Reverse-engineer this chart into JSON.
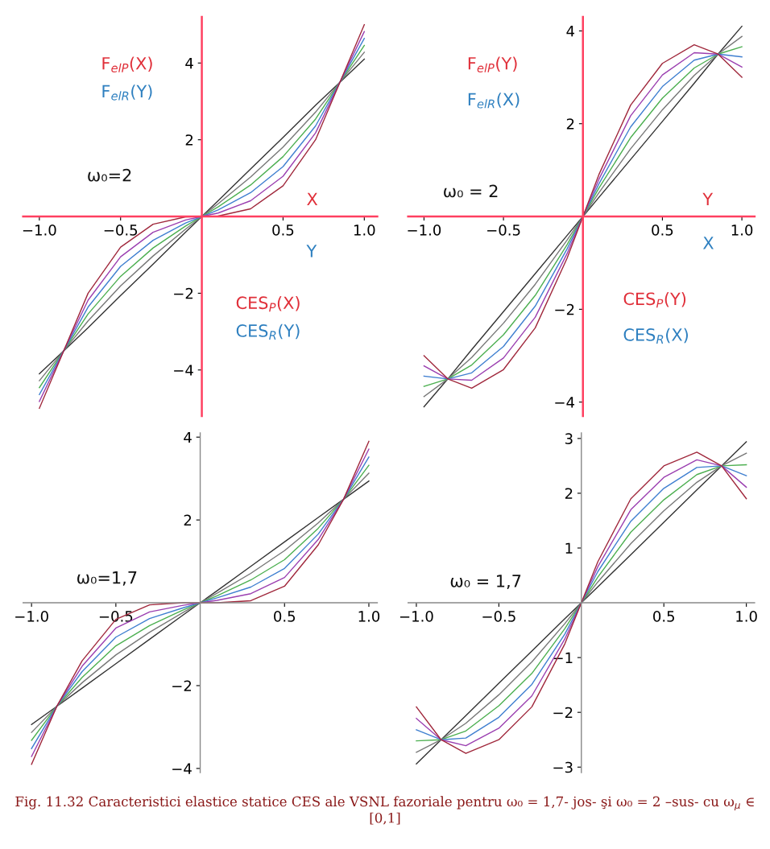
{
  "chart_data": [
    {
      "type": "line",
      "x": [
        -1,
        -0.85,
        -0.7,
        -0.5,
        -0.3,
        -0.1,
        0,
        0.1,
        0.3,
        0.5,
        0.7,
        0.85,
        1
      ],
      "series": [
        {
          "color": "#333333",
          "values": [
            -4.1,
            -3.5,
            -2.9,
            -2.06,
            -1.24,
            -0.41,
            0,
            0.41,
            1.24,
            2.06,
            2.9,
            3.5,
            4.1
          ]
        },
        {
          "color": "#777777",
          "values": [
            -4.28,
            -3.5,
            -2.72,
            -1.81,
            -1.03,
            -0.33,
            0,
            0.33,
            1.03,
            1.81,
            2.72,
            3.5,
            4.28
          ]
        },
        {
          "color": "#4caf50",
          "values": [
            -4.46,
            -3.5,
            -2.54,
            -1.56,
            -0.82,
            -0.25,
            0,
            0.25,
            0.82,
            1.56,
            2.54,
            3.5,
            4.46
          ]
        },
        {
          "color": "#3f7fd0",
          "values": [
            -4.64,
            -3.5,
            -2.36,
            -1.3,
            -0.62,
            -0.17,
            0,
            0.17,
            0.62,
            1.3,
            2.36,
            3.5,
            4.64
          ]
        },
        {
          "color": "#9b3fb0",
          "values": [
            -4.82,
            -3.5,
            -2.18,
            -1.05,
            -0.41,
            -0.09,
            0,
            0.09,
            0.41,
            1.05,
            2.18,
            3.5,
            4.82
          ]
        },
        {
          "color": "#a0283c",
          "values": [
            -5.0,
            -3.5,
            -2.0,
            -0.8,
            -0.2,
            -0.01,
            0,
            0.01,
            0.2,
            0.8,
            2.0,
            3.5,
            5.0
          ]
        }
      ],
      "xlim": [
        -1.1,
        1.08
      ],
      "ylim": [
        -5.2,
        5.2
      ],
      "xticks": [
        {
          "value": -1,
          "label": "−1.0"
        },
        {
          "value": -0.5,
          "label": "−0.5"
        },
        {
          "value": 0.5,
          "label": "0.5"
        },
        {
          "value": 1,
          "label": "1.0"
        }
      ],
      "yticks": [
        {
          "value": -4,
          "label": "−4"
        },
        {
          "value": -2,
          "label": "−2"
        },
        2,
        4
      ],
      "annotations": [
        "F$_{elP}$(X)",
        "F$_{elR}$(Y)",
        "ω₀=2",
        "X",
        "Y",
        "CES$_{P}$(X)",
        "CES$_{R}$(Y)"
      ]
    },
    {
      "type": "line",
      "x": [
        -1,
        -0.85,
        -0.7,
        -0.5,
        -0.3,
        -0.1,
        0,
        0.1,
        0.3,
        0.5,
        0.7,
        0.85,
        1
      ],
      "series": [
        {
          "color": "#333333",
          "values": [
            -4.1,
            -3.5,
            -2.87,
            -2.05,
            -1.23,
            -0.41,
            0,
            0.41,
            1.23,
            2.05,
            2.87,
            3.5,
            4.1
          ]
        },
        {
          "color": "#777777",
          "values": [
            -3.88,
            -3.5,
            -3.04,
            -2.3,
            -1.46,
            -0.51,
            0,
            0.51,
            1.46,
            2.3,
            3.04,
            3.5,
            3.88
          ]
        },
        {
          "color": "#4caf50",
          "values": [
            -3.66,
            -3.5,
            -3.2,
            -2.55,
            -1.7,
            -0.61,
            0,
            0.61,
            1.7,
            2.55,
            3.2,
            3.5,
            3.66
          ]
        },
        {
          "color": "#3f7fd0",
          "values": [
            -3.44,
            -3.5,
            -3.37,
            -2.8,
            -1.93,
            -0.7,
            0,
            0.7,
            1.93,
            2.8,
            3.37,
            3.5,
            3.44
          ]
        },
        {
          "color": "#9b3fb0",
          "values": [
            -3.22,
            -3.5,
            -3.53,
            -3.05,
            -2.17,
            -0.8,
            0,
            0.8,
            2.17,
            3.05,
            3.53,
            3.5,
            3.22
          ]
        },
        {
          "color": "#a0283c",
          "values": [
            -3.0,
            -3.5,
            -3.7,
            -3.3,
            -2.4,
            -0.9,
            0,
            0.9,
            2.4,
            3.3,
            3.7,
            3.5,
            3.0
          ]
        }
      ],
      "xlim": [
        -1.1,
        1.08
      ],
      "ylim": [
        -4.3,
        4.3
      ],
      "xticks": [
        {
          "value": -1,
          "label": "−1.0"
        },
        {
          "value": -0.5,
          "label": "−0.5"
        },
        {
          "value": 0.5,
          "label": "0.5"
        },
        {
          "value": 1,
          "label": "1.0"
        }
      ],
      "yticks": [
        {
          "value": -4,
          "label": "−4"
        },
        {
          "value": -2,
          "label": "−2"
        },
        2,
        4
      ],
      "annotations": [
        "F$_{elP}$(Y)",
        "F$_{elR}$(X)",
        "ω₀ = 2",
        "Y",
        "X",
        "CES$_{P}$(Y)",
        "CES$_{R}$(X)"
      ]
    },
    {
      "type": "line",
      "x": [
        -1,
        -0.85,
        -0.7,
        -0.5,
        -0.3,
        -0.1,
        0,
        0.1,
        0.3,
        0.5,
        0.7,
        0.85,
        1
      ],
      "series": [
        {
          "color": "#333333",
          "values": [
            -2.94,
            -2.5,
            -2.06,
            -1.47,
            -0.88,
            -0.29,
            0,
            0.29,
            0.88,
            1.47,
            2.06,
            2.5,
            2.94
          ]
        },
        {
          "color": "#777777",
          "values": [
            -3.13,
            -2.5,
            -1.93,
            -1.26,
            -0.71,
            -0.23,
            0,
            0.23,
            0.71,
            1.26,
            1.93,
            2.5,
            3.13
          ]
        },
        {
          "color": "#4caf50",
          "values": [
            -3.32,
            -2.5,
            -1.8,
            -1.04,
            -0.55,
            -0.17,
            0,
            0.17,
            0.55,
            1.04,
            1.8,
            2.5,
            3.32
          ]
        },
        {
          "color": "#3f7fd0",
          "values": [
            -3.52,
            -2.5,
            -1.66,
            -0.83,
            -0.38,
            -0.12,
            0,
            0.12,
            0.38,
            0.83,
            1.66,
            2.5,
            3.52
          ]
        },
        {
          "color": "#9b3fb0",
          "values": [
            -3.71,
            -2.5,
            -1.53,
            -0.61,
            -0.22,
            -0.06,
            0,
            0.06,
            0.22,
            0.61,
            1.53,
            2.5,
            3.71
          ]
        },
        {
          "color": "#a0283c",
          "values": [
            -3.9,
            -2.5,
            -1.4,
            -0.4,
            -0.05,
            0.0,
            0,
            0.0,
            0.05,
            0.4,
            1.4,
            2.5,
            3.9
          ]
        }
      ],
      "xlim": [
        -1.05,
        1.05
      ],
      "ylim": [
        -4.1,
        4.1
      ],
      "xticks": [
        {
          "value": -1,
          "label": "−1.0"
        },
        {
          "value": -0.5,
          "label": "−0.5"
        },
        {
          "value": 0.5,
          "label": "0.5"
        },
        {
          "value": 1,
          "label": "1.0"
        }
      ],
      "yticks": [
        {
          "value": -4,
          "label": "−4"
        },
        {
          "value": -2,
          "label": "−2"
        },
        2,
        4
      ],
      "annotations": [
        "ω₀=1,7"
      ]
    },
    {
      "type": "line",
      "x": [
        -1,
        -0.85,
        -0.7,
        -0.5,
        -0.3,
        -0.1,
        0,
        0.1,
        0.3,
        0.5,
        0.7,
        0.85,
        1
      ],
      "series": [
        {
          "color": "#333333",
          "values": [
            -2.94,
            -2.5,
            -2.06,
            -1.47,
            -0.88,
            -0.29,
            0,
            0.29,
            0.88,
            1.47,
            2.06,
            2.5,
            2.94
          ]
        },
        {
          "color": "#777777",
          "values": [
            -2.73,
            -2.5,
            -2.2,
            -1.68,
            -1.08,
            -0.38,
            0,
            0.38,
            1.08,
            1.68,
            2.2,
            2.5,
            2.73
          ]
        },
        {
          "color": "#4caf50",
          "values": [
            -2.52,
            -2.5,
            -2.34,
            -1.88,
            -1.29,
            -0.47,
            0,
            0.47,
            1.29,
            1.88,
            2.34,
            2.5,
            2.52
          ]
        },
        {
          "color": "#3f7fd0",
          "values": [
            -2.32,
            -2.5,
            -2.47,
            -2.09,
            -1.49,
            -0.57,
            0,
            0.57,
            1.49,
            2.09,
            2.47,
            2.5,
            2.32
          ]
        },
        {
          "color": "#9b3fb0",
          "values": [
            -2.11,
            -2.5,
            -2.61,
            -2.29,
            -1.7,
            -0.66,
            0,
            0.66,
            1.7,
            2.29,
            2.61,
            2.5,
            2.11
          ]
        },
        {
          "color": "#a0283c",
          "values": [
            -1.9,
            -2.5,
            -2.75,
            -2.5,
            -1.9,
            -0.75,
            0,
            0.75,
            1.9,
            2.5,
            2.75,
            2.5,
            1.9
          ]
        }
      ],
      "xlim": [
        -1.05,
        1.05
      ],
      "ylim": [
        -3.1,
        3.1
      ],
      "xticks": [
        {
          "value": -1,
          "label": "−1.0"
        },
        {
          "value": -0.5,
          "label": "−0.5"
        },
        {
          "value": 0.5,
          "label": "0.5"
        },
        {
          "value": 1,
          "label": "1.0"
        }
      ],
      "yticks": [
        {
          "value": -3,
          "label": "−3"
        },
        {
          "value": -2,
          "label": "−2"
        },
        {
          "value": -1,
          "label": "−1"
        },
        1,
        2,
        3
      ],
      "annotations": [
        "ω₀ = 1,7",
        "Fig. 11.32 Caracteristici elastice statice CES ale VSNL fazoriale pentru ω₀ = 1,7- jos- şi ω₀ = 2 –sus- cu ω$_{μ}$ ∈ [0,1]"
      ]
    }
  ]
}
